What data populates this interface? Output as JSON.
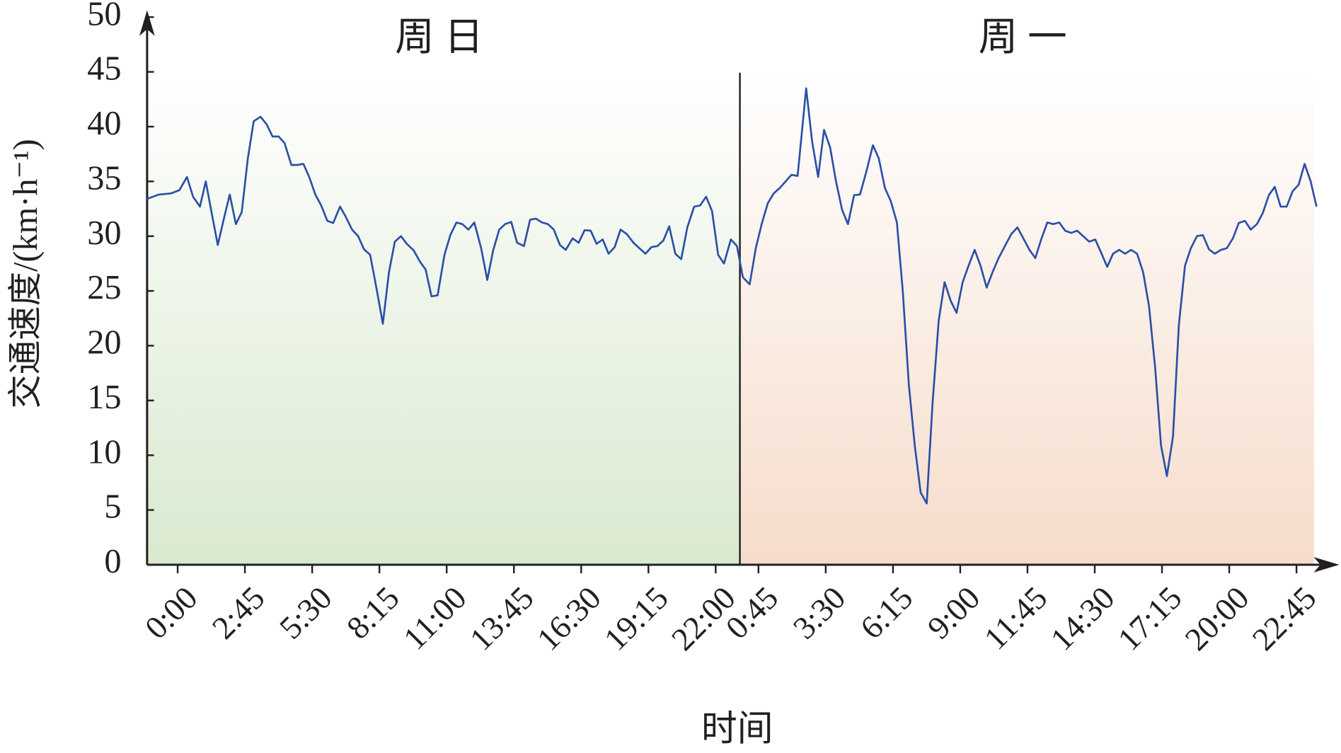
{
  "chart_data": {
    "type": "line",
    "xlabel": "时间",
    "ylabel": "交通速度/(km·h⁻¹)",
    "xlim": [
      -1.25,
      47.5
    ],
    "ylim": [
      0,
      50
    ],
    "xticks": [
      {
        "value": 0,
        "label": "0:00"
      },
      {
        "value": 2.75,
        "label": "2:45"
      },
      {
        "value": 5.5,
        "label": "5:30"
      },
      {
        "value": 8.25,
        "label": "8:15"
      },
      {
        "value": 11,
        "label": "11:00"
      },
      {
        "value": 13.75,
        "label": "13:45"
      },
      {
        "value": 16.5,
        "label": "16:30"
      },
      {
        "value": 19.25,
        "label": "19:15"
      },
      {
        "value": 22,
        "label": "22:00"
      },
      {
        "value": 23.75,
        "label": "0:45"
      },
      {
        "value": 26.5,
        "label": "3:30"
      },
      {
        "value": 29.25,
        "label": "6:15"
      },
      {
        "value": 32,
        "label": "9:00"
      },
      {
        "value": 34.75,
        "label": "11:45"
      },
      {
        "value": 37.5,
        "label": "14:30"
      },
      {
        "value": 40.25,
        "label": "17:15"
      },
      {
        "value": 43,
        "label": "20:00"
      },
      {
        "value": 45.75,
        "label": "22:45"
      }
    ],
    "yticks": [
      0,
      5,
      10,
      15,
      20,
      25,
      30,
      35,
      40,
      45,
      50
    ],
    "series": [
      {
        "label": "周 日",
        "color": "#2b4fa6",
        "x": [
          -1.26,
          -0.77,
          -0.28,
          0.07,
          0.38,
          0.63,
          0.91,
          1.15,
          1.4,
          1.64,
          1.89,
          2.13,
          2.38,
          2.62,
          2.87,
          3.11,
          3.39,
          3.64,
          3.88,
          4.13,
          4.37,
          4.65,
          4.9,
          5.14,
          5.38,
          5.63,
          5.87,
          6.12,
          6.36,
          6.64,
          6.89,
          7.13,
          7.38,
          7.62,
          7.87,
          8.15,
          8.39,
          8.64,
          8.88,
          9.13,
          9.37,
          9.65,
          9.9,
          10.14,
          10.38,
          10.63,
          10.91,
          11.15,
          11.4,
          11.64,
          11.89,
          12.13,
          12.41,
          12.66,
          12.9,
          13.15,
          13.39,
          13.64,
          13.88,
          14.16,
          14.41,
          14.65,
          14.9,
          15.14,
          15.38,
          15.63,
          15.87,
          16.15,
          16.4,
          16.64,
          16.89,
          17.13,
          17.38,
          17.62,
          17.87,
          18.11,
          18.36,
          18.64,
          18.88,
          19.13,
          19.37,
          19.62,
          19.86,
          20.1,
          20.35,
          20.59,
          20.84,
          21.12,
          21.36,
          21.61,
          21.85,
          22.1,
          22.34,
          22.62,
          22.87
        ],
        "values": [
          33.4,
          33.8,
          33.9,
          34.2,
          35.4,
          33.6,
          32.7,
          35.0,
          32.0,
          29.2,
          31.6,
          33.8,
          31.1,
          32.2,
          37.1,
          40.5,
          40.9,
          40.2,
          39.1,
          39.1,
          38.5,
          36.5,
          36.5,
          36.6,
          35.4,
          33.8,
          32.8,
          31.4,
          31.2,
          32.7,
          31.7,
          30.6,
          30.0,
          28.8,
          28.3,
          25.0,
          22.0,
          26.7,
          29.5,
          30.0,
          29.3,
          28.7,
          27.7,
          26.95,
          24.5,
          24.6,
          28.3,
          30.1,
          31.25,
          31.1,
          30.6,
          31.25,
          28.9,
          26.0,
          28.7,
          30.6,
          31.1,
          31.3,
          29.4,
          29.1,
          31.5,
          31.6,
          31.25,
          31.1,
          30.6,
          29.2,
          28.75,
          29.8,
          29.4,
          30.55,
          30.5,
          29.3,
          29.7,
          28.4,
          29.0,
          30.6,
          30.2,
          29.4,
          28.9,
          28.4,
          29.0,
          29.1,
          29.6,
          30.9,
          28.4,
          27.9,
          30.8,
          32.7,
          32.8,
          33.6,
          32.3,
          28.3,
          27.5,
          29.7,
          29.1
        ]
      },
      {
        "label": "周 一",
        "color": "#2b4fa6",
        "x": [
          23.11,
          23.39,
          23.64,
          23.88,
          24.13,
          24.37,
          24.62,
          24.86,
          25.1,
          25.35,
          25.7,
          25.94,
          26.19,
          26.43,
          26.68,
          26.92,
          27.17,
          27.41,
          27.66,
          27.9,
          28.15,
          28.43,
          28.67,
          28.92,
          29.16,
          29.41,
          29.65,
          29.9,
          30.14,
          30.38,
          30.63,
          30.87,
          31.12,
          31.36,
          31.61,
          31.85,
          32.1,
          32.34,
          32.59,
          32.83,
          33.08,
          33.32,
          33.57,
          33.85,
          34.09,
          34.34,
          34.58,
          34.83,
          35.07,
          35.31,
          35.56,
          35.8,
          36.05,
          36.29,
          36.54,
          36.78,
          37.03,
          37.27,
          37.52,
          37.76,
          38.01,
          38.25,
          38.5,
          38.74,
          38.99,
          39.23,
          39.48,
          39.72,
          39.97,
          40.21,
          40.45,
          40.7,
          40.94,
          41.19,
          41.43,
          41.68,
          41.92,
          42.17,
          42.41,
          42.66,
          42.9,
          43.15,
          43.39,
          43.64,
          43.88,
          44.13,
          44.37,
          44.62,
          44.86,
          45.1,
          45.35,
          45.59,
          45.84,
          46.08,
          46.33,
          46.57
        ],
        "values": [
          26.25,
          25.6,
          28.9,
          31.1,
          33.0,
          33.9,
          34.4,
          35.0,
          35.6,
          35.5,
          43.5,
          38.7,
          35.4,
          39.7,
          38.1,
          35.0,
          32.4,
          31.1,
          33.75,
          33.8,
          35.8,
          38.3,
          37.1,
          34.4,
          33.2,
          31.25,
          25.0,
          16.4,
          10.9,
          6.6,
          5.6,
          14.8,
          22.3,
          25.8,
          24.1,
          23.0,
          25.8,
          27.3,
          28.75,
          27.3,
          25.3,
          26.7,
          28.0,
          29.2,
          30.2,
          30.8,
          29.8,
          28.75,
          28.0,
          29.7,
          31.25,
          31.1,
          31.25,
          30.5,
          30.3,
          30.5,
          30.0,
          29.5,
          29.7,
          28.5,
          27.2,
          28.4,
          28.75,
          28.4,
          28.75,
          28.4,
          26.7,
          23.6,
          18.0,
          10.9,
          8.1,
          11.7,
          21.9,
          27.3,
          28.9,
          30.0,
          30.1,
          28.8,
          28.4,
          28.75,
          28.9,
          29.8,
          31.2,
          31.4,
          30.6,
          31.1,
          32.1,
          33.75,
          34.5,
          32.7,
          32.7,
          34.1,
          34.7,
          36.6,
          35.0,
          32.7
        ]
      }
    ]
  }
}
